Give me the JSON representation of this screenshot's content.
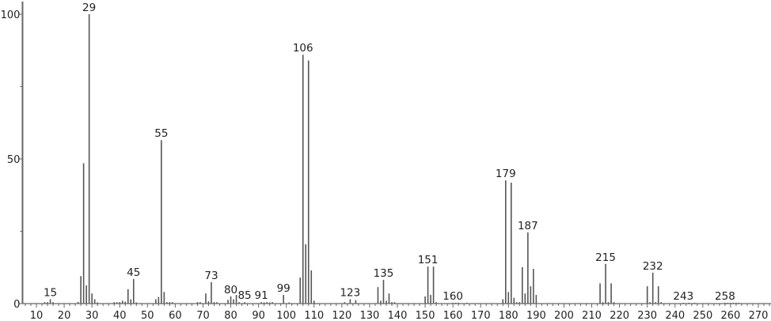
{
  "chart_data": {
    "type": "bar",
    "title": "",
    "xlabel": "",
    "ylabel": "",
    "xlim": [
      5,
      275
    ],
    "ylim": [
      0,
      100
    ],
    "grid": false,
    "x_ticks": [
      10,
      20,
      30,
      40,
      50,
      60,
      70,
      80,
      90,
      100,
      110,
      120,
      130,
      140,
      150,
      160,
      170,
      180,
      190,
      200,
      210,
      220,
      230,
      240,
      250,
      260,
      270
    ],
    "y_ticks": [
      0,
      50,
      100
    ],
    "peaks": [
      [
        13,
        0.5
      ],
      [
        14,
        0.5
      ],
      [
        15,
        1.5
      ],
      [
        16,
        0.5
      ],
      [
        25,
        0.6
      ],
      [
        26,
        9.5
      ],
      [
        27,
        48.5
      ],
      [
        28,
        6.3
      ],
      [
        29,
        100
      ],
      [
        30,
        3.5
      ],
      [
        31,
        1.5
      ],
      [
        32,
        0.4
      ],
      [
        38,
        0.5
      ],
      [
        39,
        0.5
      ],
      [
        40,
        0.5
      ],
      [
        41,
        1
      ],
      [
        42,
        0.7
      ],
      [
        43,
        5
      ],
      [
        44,
        1.5
      ],
      [
        45,
        8.5
      ],
      [
        46,
        0.4
      ],
      [
        53,
        1.5
      ],
      [
        54,
        2.3
      ],
      [
        55,
        56.5
      ],
      [
        56,
        4
      ],
      [
        57,
        0.5
      ],
      [
        58,
        0.5
      ],
      [
        59,
        0.5
      ],
      [
        68,
        0.5
      ],
      [
        69,
        0.5
      ],
      [
        71,
        3.5
      ],
      [
        72,
        0.8
      ],
      [
        73,
        7.4
      ],
      [
        74,
        0.5
      ],
      [
        75,
        0.5
      ],
      [
        79,
        1.3
      ],
      [
        80,
        2.5
      ],
      [
        81,
        1.5
      ],
      [
        82,
        3
      ],
      [
        83,
        0.5
      ],
      [
        85,
        0.5
      ],
      [
        91,
        0.5
      ],
      [
        92,
        0.4
      ],
      [
        93,
        0.5
      ],
      [
        94,
        0.4
      ],
      [
        95,
        0.5
      ],
      [
        99,
        3
      ],
      [
        101,
        0.4
      ],
      [
        105,
        9
      ],
      [
        106,
        86
      ],
      [
        107,
        20.5
      ],
      [
        108,
        84
      ],
      [
        109,
        11.5
      ],
      [
        110,
        1
      ],
      [
        121,
        0.5
      ],
      [
        123,
        1.5
      ],
      [
        125,
        1.2
      ],
      [
        133,
        5.7
      ],
      [
        134,
        1
      ],
      [
        135,
        8.2
      ],
      [
        136,
        1
      ],
      [
        137,
        3.5
      ],
      [
        138,
        0.5
      ],
      [
        139,
        0.5
      ],
      [
        150,
        2.5
      ],
      [
        151,
        12.8
      ],
      [
        152,
        3
      ],
      [
        153,
        12.8
      ],
      [
        154,
        0.5
      ],
      [
        160,
        0.3
      ],
      [
        161,
        0.3
      ],
      [
        162,
        0.3
      ],
      [
        165,
        0.3
      ],
      [
        178,
        1.5
      ],
      [
        179,
        42.6
      ],
      [
        180,
        4
      ],
      [
        181,
        41.8
      ],
      [
        182,
        2
      ],
      [
        183,
        0.5
      ],
      [
        184,
        0.5
      ],
      [
        185,
        12.6
      ],
      [
        186,
        3.5
      ],
      [
        187,
        24.6
      ],
      [
        188,
        6
      ],
      [
        189,
        12
      ],
      [
        190,
        3
      ],
      [
        213,
        7
      ],
      [
        214,
        0.5
      ],
      [
        215,
        13.7
      ],
      [
        216,
        0.5
      ],
      [
        217,
        7
      ],
      [
        218,
        0.5
      ],
      [
        230,
        6
      ],
      [
        231,
        0.5
      ],
      [
        232,
        10.7
      ],
      [
        233,
        0.5
      ],
      [
        234,
        6
      ],
      [
        235,
        0.5
      ],
      [
        243,
        0.3
      ],
      [
        245,
        0.3
      ],
      [
        247,
        0.3
      ],
      [
        258,
        0.3
      ],
      [
        259,
        0.3
      ],
      [
        260,
        0.3
      ],
      [
        261,
        0.3
      ],
      [
        262,
        0.3
      ],
      [
        263,
        0.3
      ]
    ],
    "peak_labels": [
      "15",
      "29",
      "45",
      "55",
      "73",
      "80",
      "85",
      "91",
      "99",
      "106",
      "123",
      "135",
      "151",
      "160",
      "179",
      "187",
      "215",
      "232",
      "243",
      "258"
    ],
    "colors": {
      "bars": "#555555",
      "axis": "#666666",
      "text": "#222222"
    }
  }
}
